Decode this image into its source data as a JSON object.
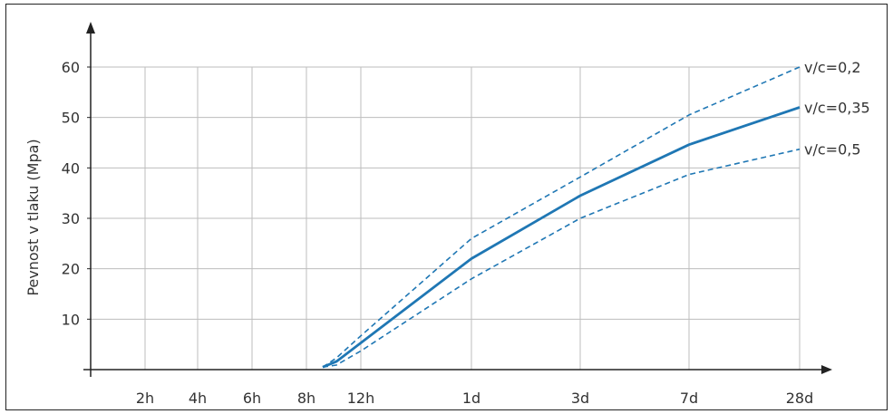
{
  "chart_data": {
    "type": "line",
    "title": "",
    "xlabel": "",
    "ylabel": "Pevnost v tlaku (Mpa)",
    "categories": [
      "2h",
      "4h",
      "6h",
      "8h",
      "12h",
      "1d",
      "3d",
      "7d",
      "28d"
    ],
    "ylim": [
      0,
      60
    ],
    "yticks": [
      10,
      20,
      30,
      40,
      50,
      60
    ],
    "grid": true,
    "legend": "inline-right",
    "series": [
      {
        "name": "v/c=0,2",
        "style": "dashed",
        "color": "#1f77b4",
        "x": [
          "8h",
          "8h+",
          "12h",
          "1d",
          "3d",
          "7d",
          "28d"
        ],
        "points": [
          [
            3.3,
            0.5
          ],
          [
            3.55,
            2.3
          ],
          [
            4.0,
            6.7
          ],
          [
            5.0,
            26.0
          ],
          [
            6.0,
            38.2
          ],
          [
            7.0,
            50.5
          ],
          [
            8.0,
            60.0
          ]
        ]
      },
      {
        "name": "v/c=0,35",
        "style": "solid",
        "color": "#1f77b4",
        "points": [
          [
            3.3,
            0.5
          ],
          [
            3.55,
            1.6
          ],
          [
            4.0,
            5.3
          ],
          [
            5.0,
            22.0
          ],
          [
            6.0,
            34.5
          ],
          [
            7.0,
            44.6
          ],
          [
            8.0,
            52.0
          ]
        ]
      },
      {
        "name": "v/c=0,5",
        "style": "dashed",
        "color": "#1f77b4",
        "points": [
          [
            3.3,
            0.5
          ],
          [
            3.55,
            0.9
          ],
          [
            4.0,
            3.7
          ],
          [
            5.0,
            18.0
          ],
          [
            6.0,
            30.0
          ],
          [
            7.0,
            38.7
          ],
          [
            8.0,
            43.7
          ]
        ]
      }
    ]
  }
}
